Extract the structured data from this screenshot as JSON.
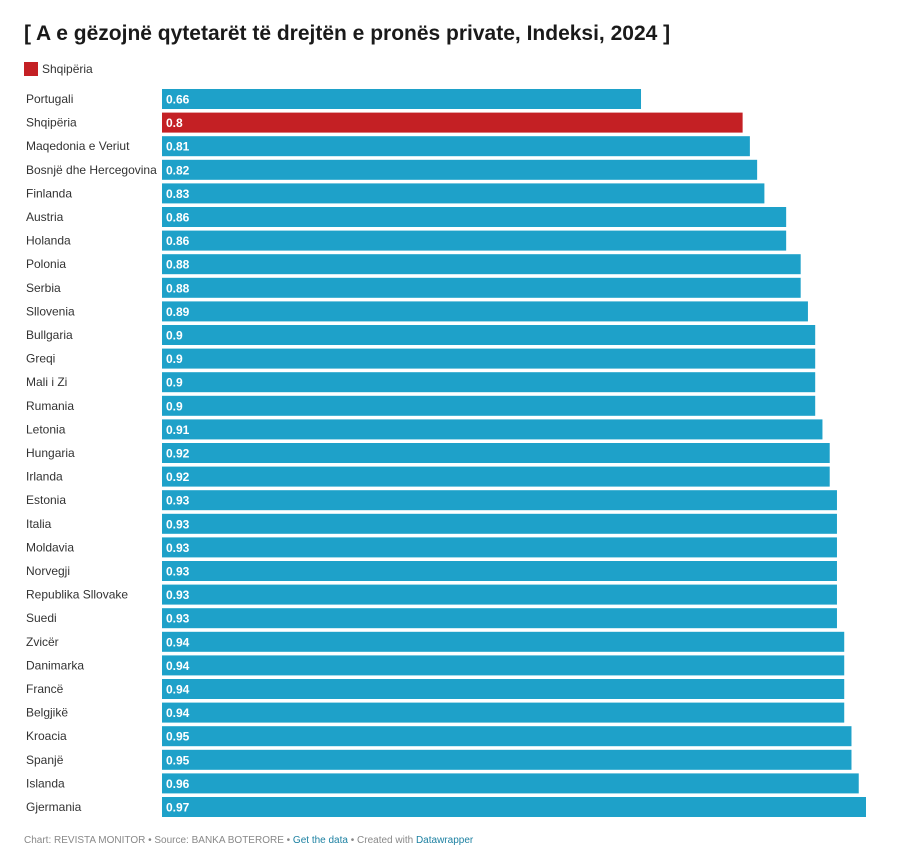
{
  "title": "[ A e gëzojnë qytetarët të drejtën e pronës private, Indeksi, 2024 ]",
  "legend": {
    "label": "Shqipëria",
    "color": "#c42024"
  },
  "colors": {
    "bar": "#1ea1c9",
    "highlight": "#c42024",
    "bar_text": "#ffffff",
    "label_text": "#333333"
  },
  "chart_data": {
    "type": "bar",
    "orientation": "horizontal",
    "title": "[ A e gëzojnë qytetarët të drejtën e pronës private, Indeksi, 2024 ]",
    "xlim": [
      0,
      0.97
    ],
    "categories": [
      "Portugali",
      "Shqipëria",
      "Maqedonia e Veriut",
      "Bosnjë dhe Hercegovina",
      "Finlanda",
      "Austria",
      "Holanda",
      "Polonia",
      "Serbia",
      "Sllovenia",
      "Bullgaria",
      "Greqi",
      "Mali i Zi",
      "Rumania",
      "Letonia",
      "Hungaria",
      "Irlanda",
      "Estonia",
      "Italia",
      "Moldavia",
      "Norvegji",
      "Republika Sllovake",
      "Suedi",
      "Zvicër",
      "Danimarka",
      "Francë",
      "Belgjikë",
      "Kroacia",
      "Spanjë",
      "Islanda",
      "Gjermania"
    ],
    "values": [
      0.66,
      0.8,
      0.81,
      0.82,
      0.83,
      0.86,
      0.86,
      0.88,
      0.88,
      0.89,
      0.9,
      0.9,
      0.9,
      0.9,
      0.91,
      0.92,
      0.92,
      0.93,
      0.93,
      0.93,
      0.93,
      0.93,
      0.93,
      0.94,
      0.94,
      0.94,
      0.94,
      0.95,
      0.95,
      0.96,
      0.97
    ],
    "value_labels": [
      "0.66",
      "0.8",
      "0.81",
      "0.82",
      "0.83",
      "0.86",
      "0.86",
      "0.88",
      "0.88",
      "0.89",
      "0.9",
      "0.9",
      "0.9",
      "0.9",
      "0.91",
      "0.92",
      "0.92",
      "0.93",
      "0.93",
      "0.93",
      "0.93",
      "0.93",
      "0.93",
      "0.94",
      "0.94",
      "0.94",
      "0.94",
      "0.95",
      "0.95",
      "0.96",
      "0.97"
    ],
    "highlight": "Shqipëria"
  },
  "footer": {
    "prefix": "Chart: REVISTA MONITOR • Source: BANKA BOTERORE • ",
    "get_data": "Get the data",
    "middle": " • Created with ",
    "datawrapper": "Datawrapper"
  }
}
